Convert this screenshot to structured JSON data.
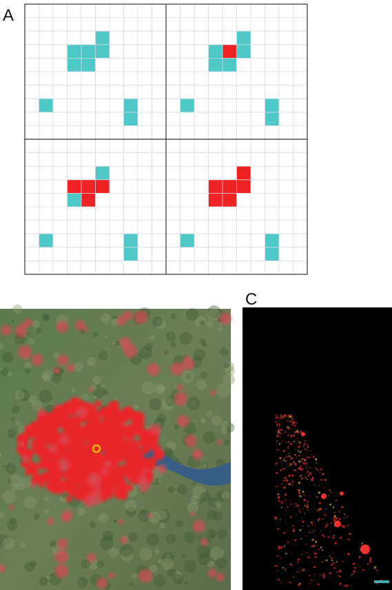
{
  "panels": [
    {
      "label": "A"
    },
    {
      "label": "C"
    }
  ]
}
